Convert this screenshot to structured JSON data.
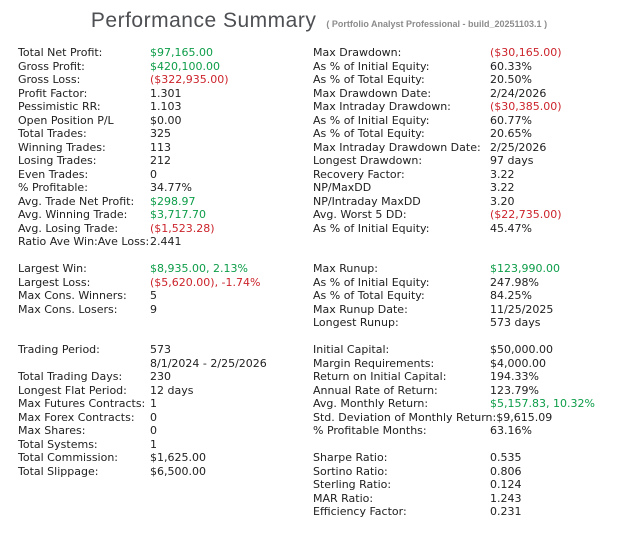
{
  "header": {
    "title": "Performance Summary",
    "subtitle": "( Portfolio Analyst Professional - build_20251103.1 )"
  },
  "colors": {
    "background": "#ffffff",
    "text": "#212121",
    "positive": "#0d9d49",
    "negative": "#cc242c",
    "title": "#4d4f53",
    "subtitle": "#8c8c8c"
  },
  "report": {
    "rows": [
      {
        "left": {
          "label": "Total Net Profit:",
          "value": "$97,165.00",
          "tone": "positive"
        },
        "right": {
          "label": "Max Drawdown:",
          "value": "($30,165.00)",
          "tone": "negative"
        }
      },
      {
        "left": {
          "label": "Gross Profit:",
          "value": "$420,100.00",
          "tone": "positive"
        },
        "right": {
          "label": "As % of Initial Equity:",
          "value": "60.33%",
          "tone": "neutral"
        }
      },
      {
        "left": {
          "label": "Gross Loss:",
          "value": "($322,935.00)",
          "tone": "negative"
        },
        "right": {
          "label": "As % of Total Equity:",
          "value": "20.50%",
          "tone": "neutral"
        }
      },
      {
        "left": {
          "label": "Profit Factor:",
          "value": "1.301",
          "tone": "neutral"
        },
        "right": {
          "label": "Max Drawdown Date:",
          "value": "2/24/2026",
          "tone": "neutral"
        }
      },
      {
        "left": {
          "label": "Pessimistic RR:",
          "value": "1.103",
          "tone": "neutral"
        },
        "right": {
          "label": "Max Intraday Drawdown:",
          "value": "($30,385.00)",
          "tone": "negative"
        }
      },
      {
        "left": {
          "label": "Open Position P/L",
          "value": "$0.00",
          "tone": "neutral"
        },
        "right": {
          "label": "As % of Initial Equity:",
          "value": "60.77%",
          "tone": "neutral"
        }
      },
      {
        "left": {
          "label": "Total Trades:",
          "value": "325",
          "tone": "neutral"
        },
        "right": {
          "label": "As % of Total Equity:",
          "value": "20.65%",
          "tone": "neutral"
        }
      },
      {
        "left": {
          "label": "Winning Trades:",
          "value": "113",
          "tone": "neutral"
        },
        "right": {
          "label": "Max Intraday Drawdown Date:",
          "value": "2/25/2026",
          "tone": "neutral"
        }
      },
      {
        "left": {
          "label": "Losing Trades:",
          "value": "212",
          "tone": "neutral"
        },
        "right": {
          "label": "Longest Drawdown:",
          "value": "97 days",
          "tone": "neutral"
        }
      },
      {
        "left": {
          "label": "Even Trades:",
          "value": "0",
          "tone": "neutral"
        },
        "right": {
          "label": "Recovery Factor:",
          "value": "3.22",
          "tone": "neutral"
        }
      },
      {
        "left": {
          "label": "% Profitable:",
          "value": "34.77%",
          "tone": "neutral"
        },
        "right": {
          "label": "NP/MaxDD",
          "value": "3.22",
          "tone": "neutral"
        }
      },
      {
        "left": {
          "label": "Avg. Trade Net Profit:",
          "value": "$298.97",
          "tone": "positive"
        },
        "right": {
          "label": "NP/Intraday MaxDD",
          "value": "3.20",
          "tone": "neutral"
        }
      },
      {
        "left": {
          "label": "Avg. Winning Trade:",
          "value": "$3,717.70",
          "tone": "positive"
        },
        "right": {
          "label": "Avg. Worst 5 DD:",
          "value": "($22,735.00)",
          "tone": "negative"
        }
      },
      {
        "left": {
          "label": "Avg. Losing Trade:",
          "value": "($1,523.28)",
          "tone": "negative"
        },
        "right": {
          "label": "As % of Initial Equity:",
          "value": "45.47%",
          "tone": "neutral"
        }
      },
      {
        "left": {
          "label": "Ratio Ave Win:Ave Loss:",
          "value": "2.441",
          "tone": "neutral"
        },
        "right": null
      },
      {
        "left": null,
        "right": null
      },
      {
        "left": {
          "label": "Largest Win:",
          "value": "$8,935.00, 2.13%",
          "tone": "positive"
        },
        "right": {
          "label": "Max Runup:",
          "value": "$123,990.00",
          "tone": "positive"
        }
      },
      {
        "left": {
          "label": "Largest Loss:",
          "value": "($5,620.00), -1.74%",
          "tone": "negative"
        },
        "right": {
          "label": "As % of Initial Equity:",
          "value": "247.98%",
          "tone": "neutral"
        }
      },
      {
        "left": {
          "label": "Max Cons. Winners:",
          "value": "5",
          "tone": "neutral"
        },
        "right": {
          "label": "As % of Total Equity:",
          "value": "84.25%",
          "tone": "neutral"
        }
      },
      {
        "left": {
          "label": "Max Cons. Losers:",
          "value": "9",
          "tone": "neutral"
        },
        "right": {
          "label": "Max Runup Date:",
          "value": "11/25/2025",
          "tone": "neutral"
        }
      },
      {
        "left": null,
        "right": {
          "label": "Longest Runup:",
          "value": "573 days",
          "tone": "neutral"
        }
      },
      {
        "left": null,
        "right": null
      },
      {
        "left": {
          "label": "Trading Period:",
          "value": "573",
          "tone": "neutral"
        },
        "right": {
          "label": "Initial Capital:",
          "value": "$50,000.00",
          "tone": "neutral"
        }
      },
      {
        "left": {
          "label": "",
          "value": "8/1/2024 - 2/25/2026",
          "tone": "neutral"
        },
        "right": {
          "label": "Margin Requirements:",
          "value": "$4,000.00",
          "tone": "neutral"
        }
      },
      {
        "left": {
          "label": "Total Trading Days:",
          "value": "230",
          "tone": "neutral"
        },
        "right": {
          "label": "Return on Initial Capital:",
          "value": "194.33%",
          "tone": "neutral"
        }
      },
      {
        "left": {
          "label": "Longest Flat Period:",
          "value": "12 days",
          "tone": "neutral"
        },
        "right": {
          "label": "Annual Rate of Return:",
          "value": "123.79%",
          "tone": "neutral"
        }
      },
      {
        "left": {
          "label": "Max Futures Contracts:",
          "value": "1",
          "tone": "neutral"
        },
        "right": {
          "label": "Avg. Monthly Return:",
          "value": "$5,157.83, 10.32%",
          "tone": "positive"
        }
      },
      {
        "left": {
          "label": "Max Forex Contracts:",
          "value": "0",
          "tone": "neutral"
        },
        "right": {
          "label": "Std. Deviation of Monthly Return:",
          "value": "$9,615.09",
          "tone": "neutral"
        }
      },
      {
        "left": {
          "label": "Max Shares:",
          "value": "0",
          "tone": "neutral"
        },
        "right": {
          "label": "% Profitable Months:",
          "value": "63.16%",
          "tone": "neutral"
        }
      },
      {
        "left": {
          "label": "Total Systems:",
          "value": "1",
          "tone": "neutral"
        },
        "right": null
      },
      {
        "left": {
          "label": "Total Commission:",
          "value": "$1,625.00",
          "tone": "neutral"
        },
        "right": {
          "label": "Sharpe Ratio:",
          "value": "0.535",
          "tone": "neutral"
        }
      },
      {
        "left": {
          "label": "Total Slippage:",
          "value": "$6,500.00",
          "tone": "neutral"
        },
        "right": {
          "label": "Sortino Ratio:",
          "value": "0.806",
          "tone": "neutral"
        }
      },
      {
        "left": null,
        "right": {
          "label": "Sterling Ratio:",
          "value": "0.124",
          "tone": "neutral"
        }
      },
      {
        "left": null,
        "right": {
          "label": "MAR Ratio:",
          "value": "1.243",
          "tone": "neutral"
        }
      },
      {
        "left": null,
        "right": {
          "label": "Efficiency Factor:",
          "value": "0.231",
          "tone": "neutral"
        }
      }
    ]
  }
}
